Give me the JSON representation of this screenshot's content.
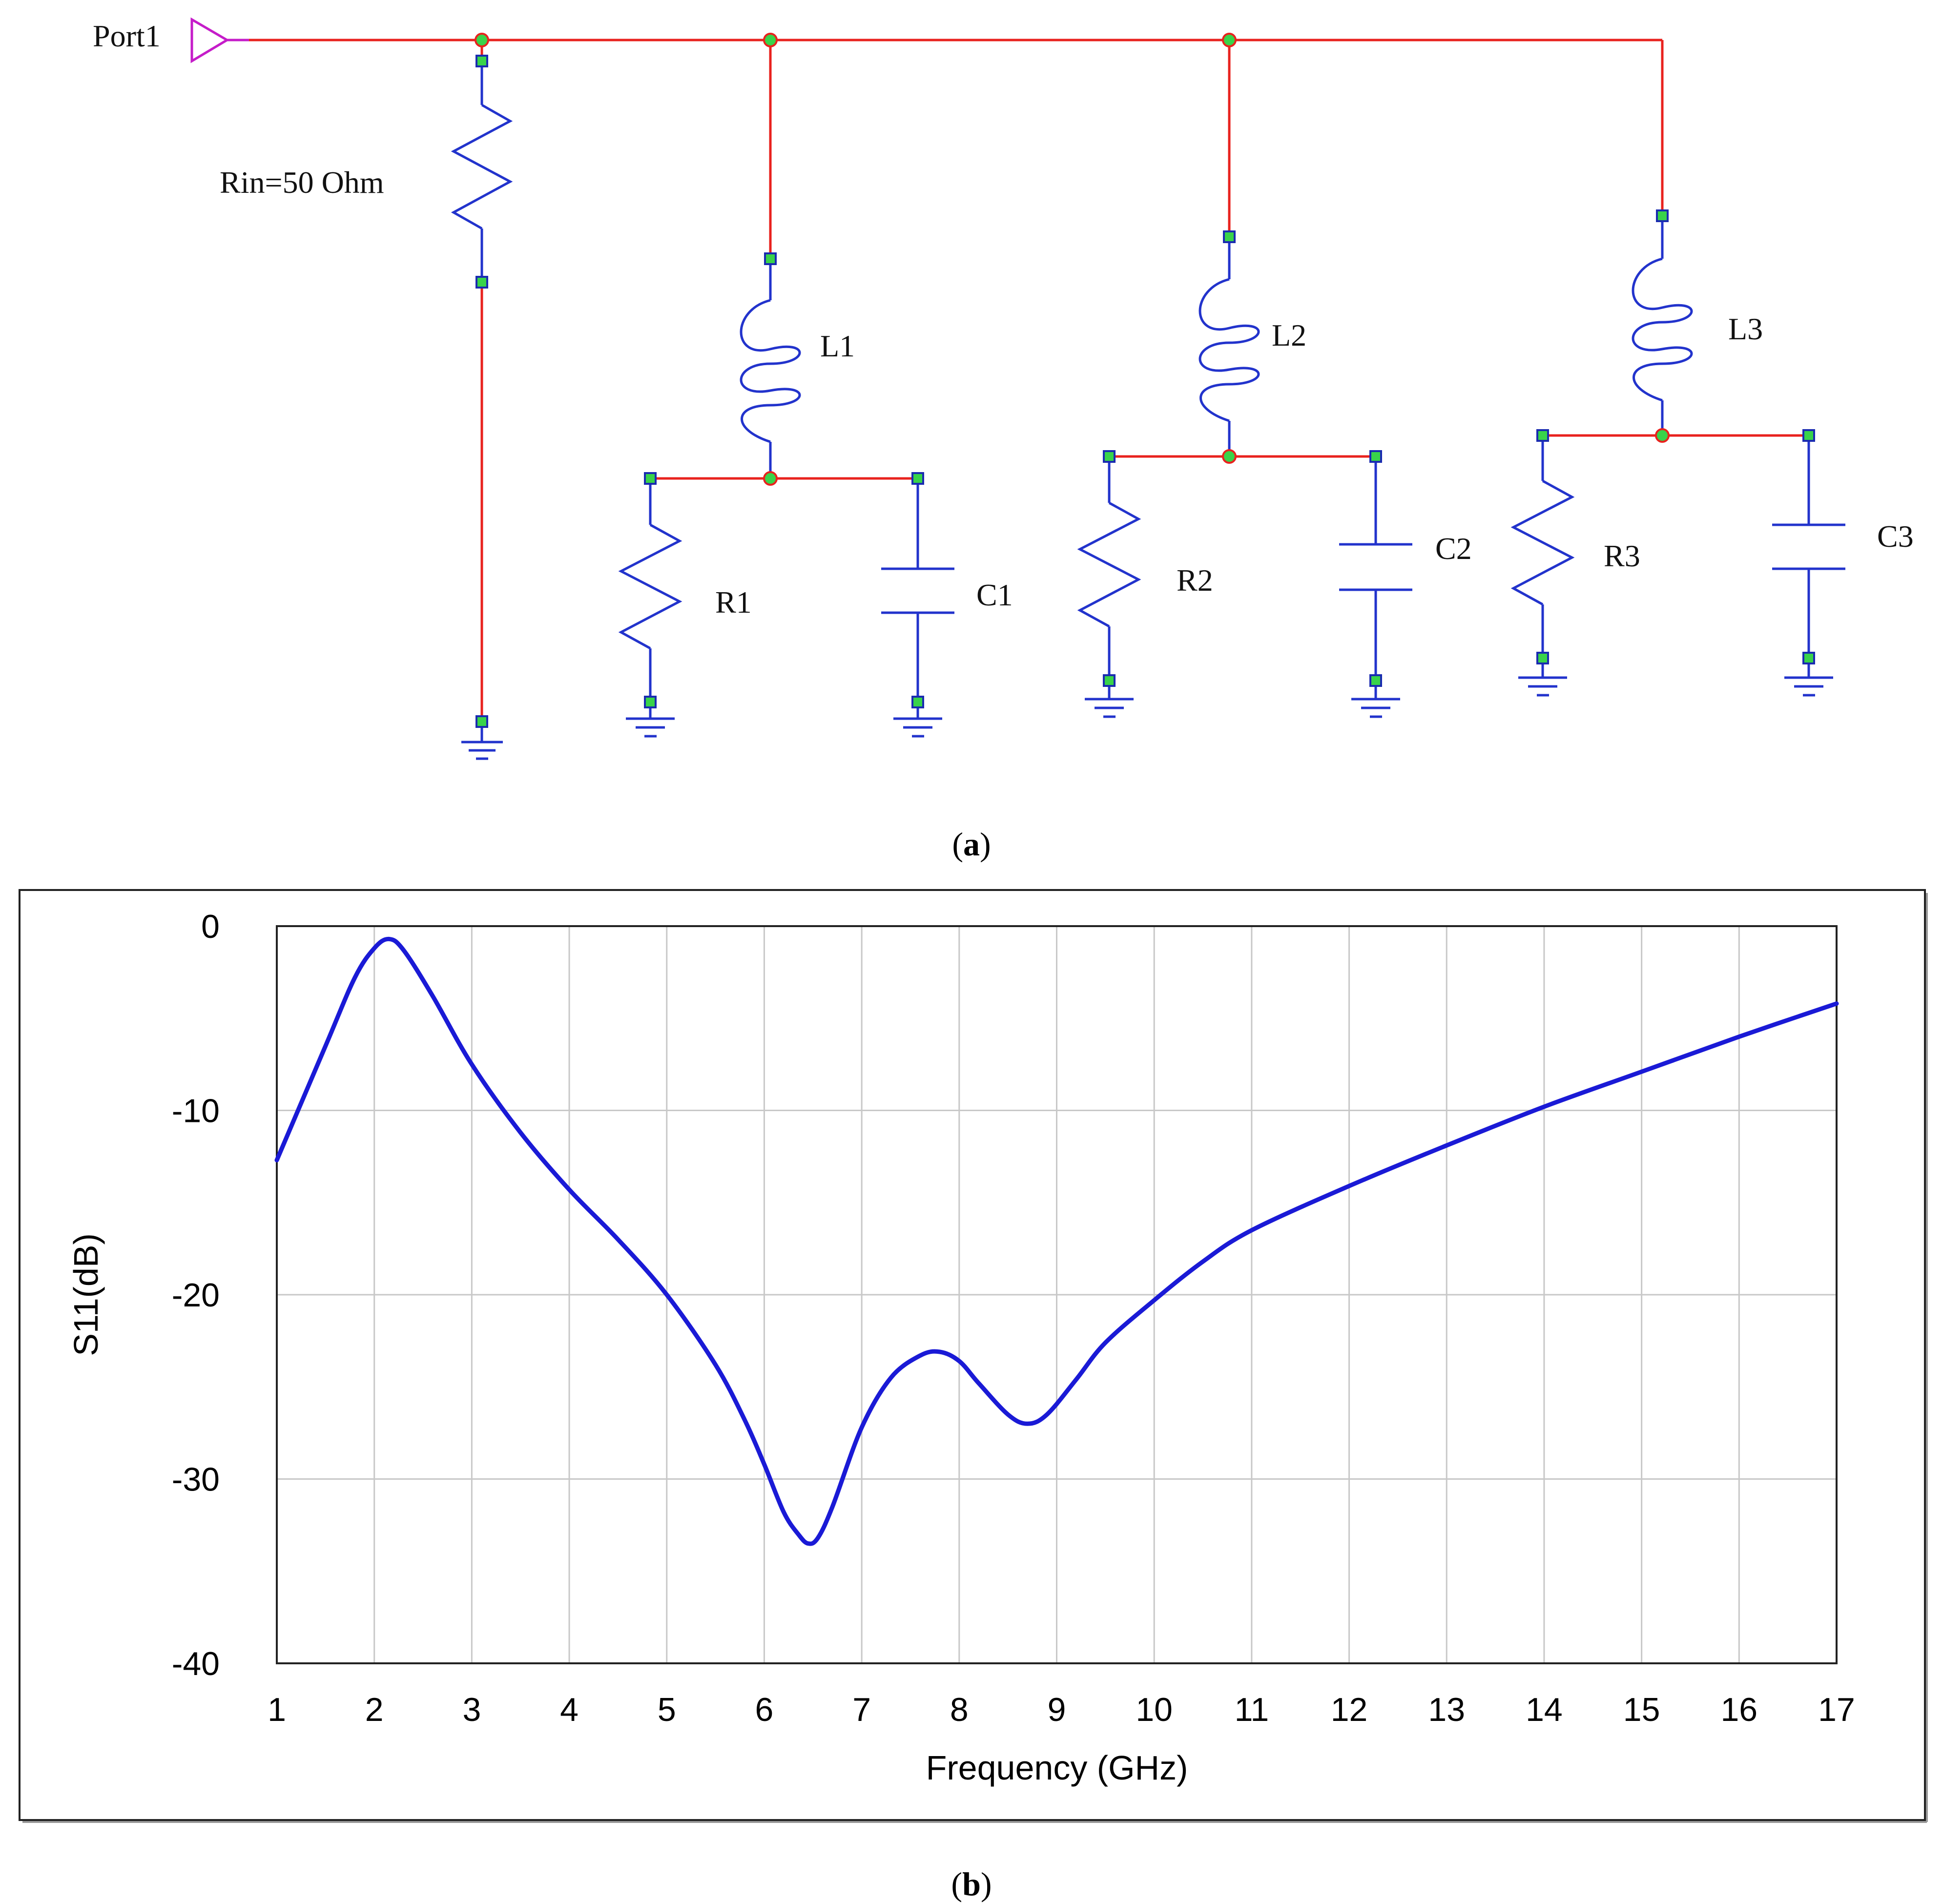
{
  "schematic": {
    "port_label": "Port1",
    "components": {
      "rin": "Rin=50 Ohm",
      "l1": "L1",
      "r1": "R1",
      "c1": "C1",
      "l2": "L2",
      "r2": "R2",
      "c2": "C2",
      "l3": "L3",
      "r3": "R3",
      "c3": "C3"
    },
    "colors": {
      "wire": "#e8221e",
      "component": "#2233cc",
      "pin": "#39d34a",
      "port": "#c51cc9"
    }
  },
  "captions": {
    "a": "a",
    "b": "b"
  },
  "chart_data": {
    "type": "line",
    "title": "",
    "xlabel": "Frequency (GHz)",
    "ylabel": "S11(dB)",
    "xlim": [
      1,
      17
    ],
    "ylim": [
      -40,
      0
    ],
    "xticks": [
      1,
      2,
      3,
      4,
      5,
      6,
      7,
      8,
      9,
      10,
      11,
      12,
      13,
      14,
      15,
      16,
      17
    ],
    "yticks": [
      0,
      -10,
      -20,
      -30,
      -40
    ],
    "grid": true,
    "series": [
      {
        "color": "#1a1ad6",
        "x": [
          1.0,
          1.5,
          1.8,
          2.0,
          2.15,
          2.3,
          2.6,
          3.0,
          3.5,
          4.0,
          4.5,
          5.0,
          5.5,
          5.8,
          6.0,
          6.2,
          6.35,
          6.45,
          6.55,
          6.7,
          7.0,
          7.3,
          7.6,
          7.8,
          8.0,
          8.2,
          8.5,
          8.7,
          8.9,
          9.2,
          9.5,
          10.0,
          10.5,
          11.0,
          12.0,
          13.0,
          14.0,
          15.0,
          16.0,
          17.0
        ],
        "y": [
          -12.7,
          -6.5,
          -2.8,
          -1.2,
          -0.7,
          -1.3,
          -3.8,
          -7.5,
          -11.2,
          -14.3,
          -17.0,
          -20.0,
          -23.8,
          -26.8,
          -29.2,
          -31.8,
          -33.0,
          -33.5,
          -33.2,
          -31.5,
          -27.2,
          -24.5,
          -23.3,
          -23.1,
          -23.6,
          -24.8,
          -26.5,
          -27.0,
          -26.5,
          -24.6,
          -22.6,
          -20.3,
          -18.2,
          -16.5,
          -14.1,
          -11.9,
          -9.8,
          -7.9,
          -6.0,
          -4.2
        ]
      }
    ]
  }
}
